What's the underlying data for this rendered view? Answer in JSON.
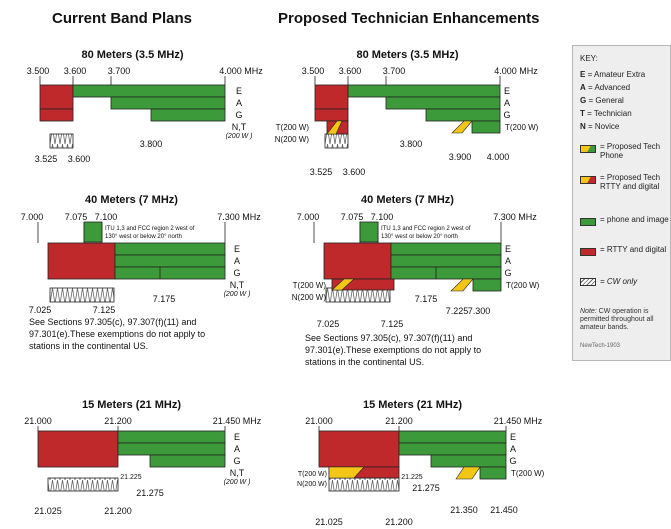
{
  "headers": {
    "left": "Current Band Plans",
    "right": "Proposed Technician Enhancements"
  },
  "colors": {
    "green": "#3d9a3b",
    "red": "#c0292c",
    "yellow": "#f2c517",
    "cw_bg": "#ffffff",
    "cw_stroke": "#666666"
  },
  "licenses": [
    "E",
    "A",
    "G",
    "N,T"
  ],
  "licenses_proposed": [
    "E",
    "A",
    "G",
    "T(200 W)"
  ],
  "power_note": "(200 W )",
  "t_left_label": "T(200 W)",
  "n_left_label": "N(200 W)",
  "footnote_lines": [
    "See Sections 97.305(c), 97.307(f)(11) and",
    "97.301(e).These exemptions do not apply to",
    "stations in the continental US."
  ],
  "itu_note_lines": [
    "ITU 1,3 and FCC region 2 west of",
    "130° west or below 20° north"
  ],
  "bands": {
    "m80": {
      "title": "80 Meters (3.5 MHz)",
      "top_ticks": [
        "3.500",
        "3.600",
        "3.700",
        "4.000  MHz"
      ],
      "cur_bottom": [
        "3.525",
        "3.600",
        "3.800"
      ],
      "prop_bottom": [
        "3.525",
        "3.600",
        "3.800",
        "3.900",
        "4.000"
      ]
    },
    "m40": {
      "title": "40 Meters (7 MHz)",
      "top_ticks": [
        "7.000",
        "7.075",
        "7.100",
        "7.300  MHz"
      ],
      "cur_bottom": [
        "7.025",
        "7.125",
        "7.175"
      ],
      "prop_bottom": [
        "7.025",
        "7.125",
        "7.175",
        "7.225",
        "7.300"
      ]
    },
    "m15": {
      "title": "15 Meters (21 MHz)",
      "top_ticks": [
        "21.000",
        "21.200",
        "21.450  MHz"
      ],
      "cur_bottom": [
        "21.025",
        "21.200",
        "21.225",
        "21.275"
      ],
      "prop_bottom": [
        "21.025",
        "21.200",
        "21.225",
        "21.275",
        "21.350",
        "21.450"
      ]
    }
  },
  "key": {
    "title": "KEY:",
    "licenses": [
      {
        "code": "E",
        "name": " = Amateur Extra"
      },
      {
        "code": "A",
        "name": " = Advanced"
      },
      {
        "code": "G",
        "name": " = General"
      },
      {
        "code": "T",
        "name": " = Technician"
      },
      {
        "code": "N",
        "name": " = Novice"
      }
    ],
    "items": [
      {
        "label": "= Proposed Tech Phone"
      },
      {
        "label": "= Proposed Tech RTTY and digital"
      },
      {
        "label": "= phone and image"
      },
      {
        "label": "= RTTY and digital"
      },
      {
        "label": "= CW only"
      }
    ],
    "note_prefix": "Note:",
    "note": " CW operation is permitted throughout all amateur bands.",
    "tag": "NewTech-1903"
  }
}
